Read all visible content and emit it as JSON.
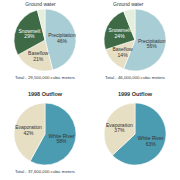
{
  "chart_data": [
    {
      "type": "pie",
      "categories": [
        "Precipitation",
        "Baseflow",
        "Snowmelt",
        "Ground water"
      ],
      "values": [
        46,
        21,
        29,
        4
      ],
      "value_labels": [
        "46%",
        "21%",
        "29%",
        null
      ],
      "colors": [
        "#a9cdd4",
        "#e7dfc3",
        "#3e6b46",
        "#e4eedc"
      ],
      "data_labels": true,
      "subtitle": "Total - 29,500,000 cubic meters"
    },
    {
      "type": "pie",
      "categories": [
        "Precipitation",
        "Baseflow",
        "Snowmelt",
        "Ground water"
      ],
      "values": [
        56,
        14,
        24,
        6
      ],
      "value_labels": [
        "56%",
        "14%",
        "24%",
        null
      ],
      "colors": [
        "#a9cdd4",
        "#e7dfc3",
        "#3e6b46",
        "#e4eedc"
      ],
      "data_labels": true,
      "subtitle": "Total - 46,000,000 cubic meters"
    },
    {
      "type": "pie",
      "title": "1998 Outflow",
      "categories": [
        "White River",
        "Evaporation"
      ],
      "values": [
        58,
        42
      ],
      "value_labels": [
        "58%",
        "42%"
      ],
      "colors": [
        "#4b9bb1",
        "#e6dfc4"
      ],
      "data_labels": true,
      "subtitle": "Total - 37,600,000 cubic meters"
    },
    {
      "type": "pie",
      "title": "1999 Outflow",
      "categories": [
        "White River",
        "Evaporation"
      ],
      "values": [
        63,
        37
      ],
      "value_labels": [
        "63%",
        "37%"
      ],
      "colors": [
        "#4b9bb1",
        "#e6dfc4"
      ],
      "data_labels": true
    }
  ]
}
